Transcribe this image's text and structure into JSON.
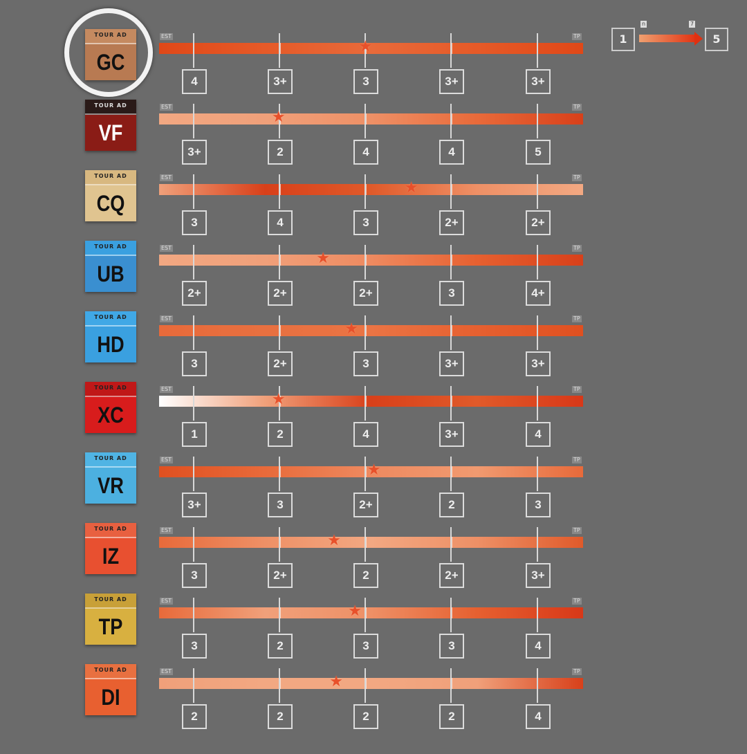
{
  "legend": {
    "min": "1",
    "max": "5",
    "min_tag": "n",
    "max_tag": "7"
  },
  "colors": {
    "background": "#6b6b6b",
    "star": "#e8502a",
    "bar_dark": "#d8401a",
    "bar_light": "#f2a882"
  },
  "rows": [
    {
      "code": "GC",
      "tag": "TOUR AD",
      "start": "EST",
      "end": "TP",
      "badge": "#b87a52",
      "badge_top": "#c58a60",
      "text": "#111",
      "highlighted": true,
      "star": 0.487,
      "values": [
        "4",
        "3+",
        "3",
        "3+",
        "3+"
      ],
      "grad": [
        "#e04818",
        "#e65a28",
        "#e86a3a",
        "#e65a28",
        "#e04818"
      ]
    },
    {
      "code": "VF",
      "tag": "TOUR AD",
      "start": "EST",
      "end": "TP",
      "badge": "#8a1c16",
      "badge_top": "#2a1a18",
      "text": "#fff",
      "star": 0.282,
      "values": [
        "3+",
        "2",
        "4",
        "4",
        "5"
      ],
      "grad": [
        "#f2a882",
        "#f0a07a",
        "#ee9066",
        "#e86a3a",
        "#d8401a"
      ]
    },
    {
      "code": "CQ",
      "tag": "TOUR AD",
      "start": "EST",
      "end": "TP",
      "badge": "#e0c490",
      "badge_top": "#d8b880",
      "text": "#111",
      "star": 0.595,
      "values": [
        "3",
        "4",
        "3",
        "2+",
        "2+"
      ],
      "grad": [
        "#f0a07a",
        "#d8401a",
        "#e05a2a",
        "#ee9066",
        "#f2a882"
      ]
    },
    {
      "code": "UB",
      "tag": "TOUR AD",
      "start": "EST",
      "end": "TP",
      "badge": "#3a8fd0",
      "badge_top": "#3aa0e0",
      "text": "#111",
      "star": 0.387,
      "values": [
        "2+",
        "2+",
        "2+",
        "3",
        "4+"
      ],
      "grad": [
        "#f2a882",
        "#f0a07a",
        "#ee8a60",
        "#e66030",
        "#d8401a"
      ]
    },
    {
      "code": "HD",
      "tag": "TOUR AD",
      "start": "EST",
      "end": "TP",
      "badge": "#3aa0e0",
      "badge_top": "#40a8e6",
      "text": "#111",
      "star": 0.454,
      "values": [
        "3",
        "2+",
        "3",
        "3+",
        "3+"
      ],
      "grad": [
        "#e86a3a",
        "#e87040",
        "#ea7444",
        "#e66030",
        "#e05020"
      ]
    },
    {
      "code": "XC",
      "tag": "TOUR AD",
      "start": "EST",
      "end": "TP",
      "badge": "#d81c1c",
      "badge_top": "#c01818",
      "text": "#111",
      "star": 0.282,
      "values": [
        "1",
        "2",
        "4",
        "3+",
        "4"
      ],
      "grad": [
        "#ffffff",
        "#f0a07a",
        "#d8401a",
        "#e05a2a",
        "#d83818"
      ]
    },
    {
      "code": "VR",
      "tag": "TOUR AD",
      "start": "EST",
      "end": "TP",
      "badge": "#4cb0e0",
      "badge_top": "#50b4e4",
      "text": "#111",
      "star": 0.507,
      "values": [
        "3+",
        "3",
        "2+",
        "2",
        "3"
      ],
      "grad": [
        "#e05020",
        "#e86a3a",
        "#ee8a60",
        "#f09a70",
        "#e86a3a"
      ]
    },
    {
      "code": "IZ",
      "tag": "TOUR AD",
      "start": "EST",
      "end": "TP",
      "badge": "#e85030",
      "badge_top": "#e86040",
      "text": "#111",
      "star": 0.413,
      "values": [
        "3",
        "2+",
        "2",
        "2+",
        "3+"
      ],
      "grad": [
        "#e86a3a",
        "#ee9066",
        "#f2a882",
        "#ee9066",
        "#e05a2a"
      ]
    },
    {
      "code": "TP",
      "tag": "TOUR AD",
      "start": "EST",
      "end": "TP",
      "badge": "#d8b040",
      "badge_top": "#c8a038",
      "text": "#111",
      "star": 0.462,
      "values": [
        "3",
        "2",
        "3",
        "3",
        "4"
      ],
      "grad": [
        "#e86a3a",
        "#f0a07a",
        "#ee9066",
        "#e66030",
        "#d83818"
      ]
    },
    {
      "code": "DI",
      "tag": "TOUR AD",
      "start": "EST",
      "end": "TP",
      "badge": "#e86030",
      "badge_top": "#e87040",
      "text": "#111",
      "star": 0.418,
      "values": [
        "2",
        "2",
        "2",
        "2",
        "4"
      ],
      "grad": [
        "#f0a07a",
        "#f2a882",
        "#f2a882",
        "#f0a07a",
        "#d8401a"
      ]
    }
  ]
}
